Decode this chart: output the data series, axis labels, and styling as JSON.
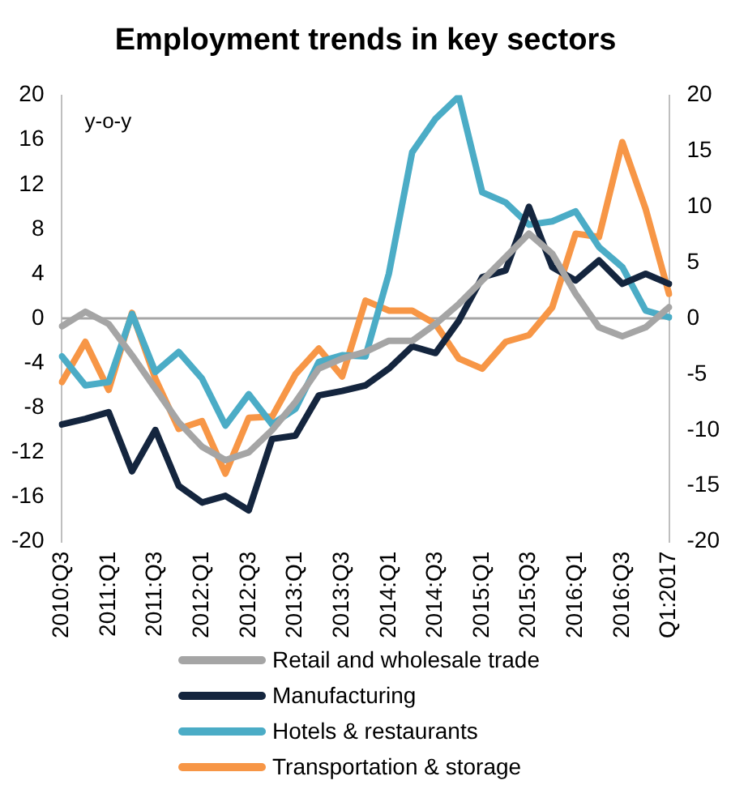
{
  "chart_data": {
    "type": "line",
    "title": "Employment trends in key sectors",
    "categories": [
      "2010:Q3",
      null,
      "2011:Q1",
      null,
      "2011:Q3",
      null,
      "2012:Q1",
      null,
      "2012:Q3",
      null,
      "2013:Q1",
      null,
      "2013:Q3",
      null,
      "2014:Q1",
      null,
      "2014:Q3",
      null,
      "2015:Q1",
      null,
      "2015:Q3",
      null,
      "2016:Q1",
      null,
      "2016:Q3",
      null,
      "Q1:2017"
    ],
    "series": [
      {
        "name": "Retail and wholesale trade",
        "color": "#a5a5a5",
        "values": [
          -0.7,
          0.6,
          -0.5,
          -3.3,
          -6.3,
          -9.3,
          -11.5,
          -12.7,
          -12,
          -10,
          -7.5,
          -4.5,
          -3.6,
          -3,
          -2,
          -2,
          -0.5,
          1.3,
          3.4,
          5.5,
          7.6,
          5.8,
          2.2,
          -0.8,
          -1.6,
          -0.8,
          1
        ]
      },
      {
        "name": "Manufacturing",
        "color": "#14253e",
        "values": [
          -9.5,
          -9,
          -8.4,
          -13.7,
          -10,
          -15,
          -16.5,
          -15.9,
          -17.2,
          -10.8,
          -10.5,
          -6.9,
          -6.5,
          -6,
          -4.5,
          -2.5,
          -3.1,
          -0.2,
          3.7,
          4.3,
          10,
          4.6,
          3.4,
          5.2,
          3.1,
          4,
          3.1
        ]
      },
      {
        "name": "Hotels & restaurants",
        "color": "#4bacc6",
        "values": [
          -3.4,
          -6,
          -5.7,
          0.4,
          -4.8,
          -3,
          -5.4,
          -9.6,
          -6.8,
          -9.5,
          -8.1,
          -3.9,
          -3.3,
          -3.4,
          4,
          14.9,
          17.9,
          19.9,
          11.3,
          10.4,
          8.4,
          8.7,
          9.6,
          6.4,
          4.6,
          0.7,
          0.1
        ]
      },
      {
        "name": "Transportation & storage",
        "color": "#f79646",
        "values": [
          -5.7,
          -2.1,
          -6.4,
          0.5,
          -5.4,
          -9.9,
          -9.2,
          -13.9,
          -8.9,
          -8.8,
          -5,
          -2.7,
          -5.2,
          1.6,
          0.7,
          0.7,
          -0.5,
          -3.6,
          -4.5,
          -2.1,
          -1.5,
          1,
          7.6,
          7.3,
          15.8,
          9.8,
          2.2
        ]
      }
    ],
    "ylim": [
      -20,
      20
    ],
    "yticks": [
      -20,
      -16,
      -12,
      -8,
      -4,
      0,
      4,
      8,
      12,
      16,
      20
    ],
    "y2lim": [
      -20,
      20
    ],
    "y2ticks": [
      -20,
      -15,
      -10,
      -5,
      0,
      5,
      10,
      15,
      20
    ],
    "annotations": [
      "y-o-y"
    ],
    "ref_lines": [
      {
        "axis": "y",
        "value": 0,
        "color": "#a6a6a6"
      }
    ],
    "legend": "bottom",
    "grid": false,
    "marker": "none",
    "line_style": "solid"
  }
}
